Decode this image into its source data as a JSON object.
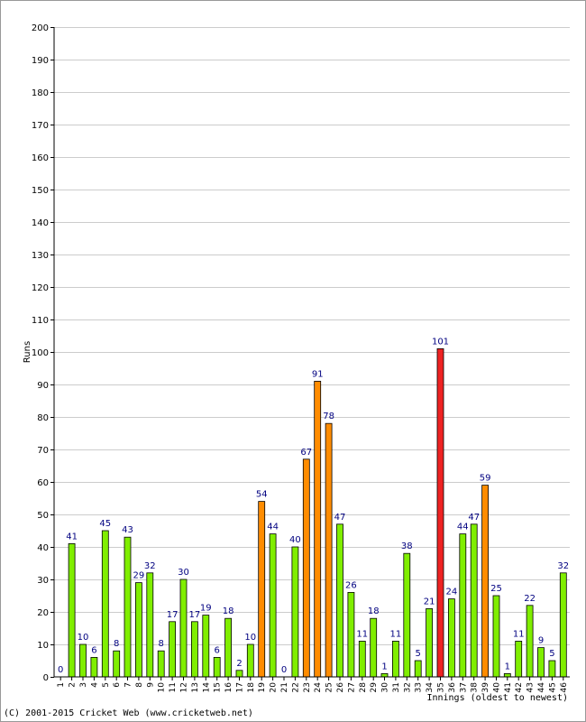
{
  "copyright": "(C) 2001-2015 Cricket Web (www.cricketweb.net)",
  "chart_data": {
    "type": "bar",
    "title": "",
    "xlabel": "Innings (oldest to newest)",
    "ylabel": "Runs",
    "ylim": [
      0,
      200
    ],
    "yticks": [
      0,
      10,
      20,
      30,
      40,
      50,
      60,
      70,
      80,
      90,
      100,
      110,
      120,
      130,
      140,
      150,
      160,
      170,
      180,
      190,
      200
    ],
    "grid": true,
    "categories": [
      "1",
      "2",
      "3",
      "4",
      "5",
      "6",
      "7",
      "8",
      "9",
      "10",
      "11",
      "12",
      "13",
      "14",
      "15",
      "16",
      "17",
      "18",
      "19",
      "20",
      "21",
      "22",
      "23",
      "24",
      "25",
      "26",
      "27",
      "28",
      "29",
      "30",
      "31",
      "32",
      "33",
      "34",
      "35",
      "36",
      "37",
      "38",
      "39",
      "40",
      "41",
      "42",
      "43",
      "44",
      "45",
      "46"
    ],
    "values": [
      0,
      41,
      10,
      6,
      45,
      8,
      43,
      29,
      32,
      8,
      17,
      30,
      17,
      19,
      6,
      18,
      2,
      10,
      54,
      44,
      0,
      40,
      67,
      91,
      78,
      47,
      26,
      11,
      18,
      1,
      11,
      38,
      5,
      21,
      101,
      24,
      44,
      47,
      59,
      25,
      1,
      11,
      22,
      9,
      5,
      32
    ],
    "colors": {
      "below_50": "#80ee00",
      "fifty_plus": "#ff8c00",
      "hundred_plus": "#ee2222",
      "bar_outline": "#000000",
      "value_label": "#000080",
      "grid": "#cccccc",
      "axis": "#000000"
    }
  }
}
